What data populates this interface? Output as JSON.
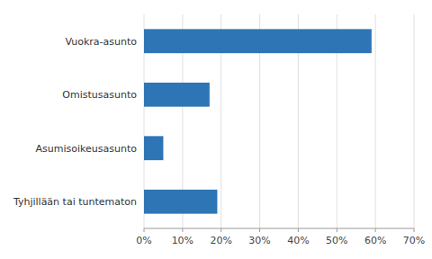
{
  "chart_data": {
    "type": "bar",
    "orientation": "horizontal",
    "categories": [
      "Tyhjillään tai tuntematon",
      "Asumisoikeusasunto",
      "Omistusasunto",
      "Vuokra-asunto"
    ],
    "values": [
      19,
      5,
      17,
      59
    ],
    "color": "#2E75B6",
    "xlim": [
      0,
      70
    ],
    "xticks": [
      {
        "value": 0,
        "label": "0%"
      },
      {
        "value": 10,
        "label": "10%"
      },
      {
        "value": 20,
        "label": "20%"
      },
      {
        "value": 30,
        "label": "30%"
      },
      {
        "value": 40,
        "label": "40%"
      },
      {
        "value": 50,
        "label": "50%"
      },
      {
        "value": 60,
        "label": "60%"
      },
      {
        "value": 70,
        "label": "70%"
      }
    ],
    "grid": true
  }
}
